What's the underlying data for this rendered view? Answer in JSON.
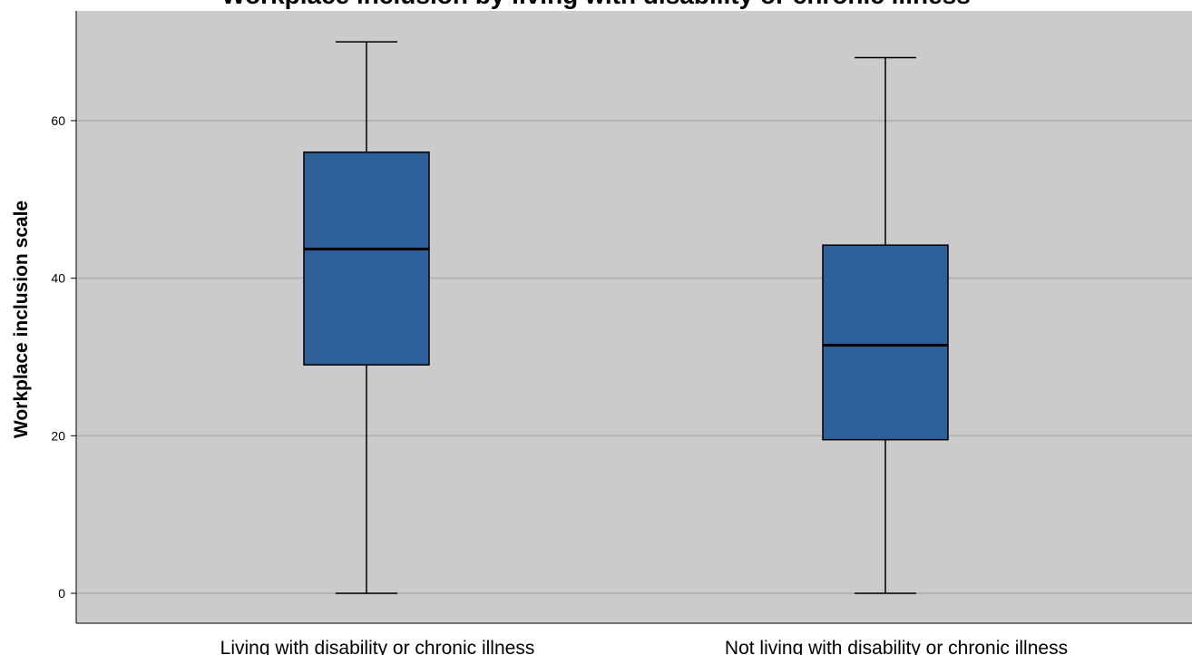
{
  "chart_data": {
    "type": "boxplot",
    "title": "Workplace inclusion by living with disability or chronic illness",
    "ylabel": "Workplace inclusion scale",
    "xlabel": "",
    "ylim": [
      -4,
      74
    ],
    "yticks": [
      0,
      20,
      40,
      60
    ],
    "grid": true,
    "categories": [
      "Living with disability or chronic illness",
      "Not living with disability or chronic illness"
    ],
    "boxes": [
      {
        "category": "Living with disability or chronic illness",
        "min": 0,
        "q1": 29,
        "median": 43.7,
        "q3": 56,
        "max": 70
      },
      {
        "category": "Not living with disability or chronic illness",
        "min": 0,
        "q1": 19.5,
        "median": 31.5,
        "q3": 44.2,
        "max": 68
      }
    ],
    "colors": {
      "box_fill": "#2d5f98",
      "plot_background": "#cbcbcb",
      "gridline": "#b3b3b3",
      "stroke": "#000000"
    }
  }
}
